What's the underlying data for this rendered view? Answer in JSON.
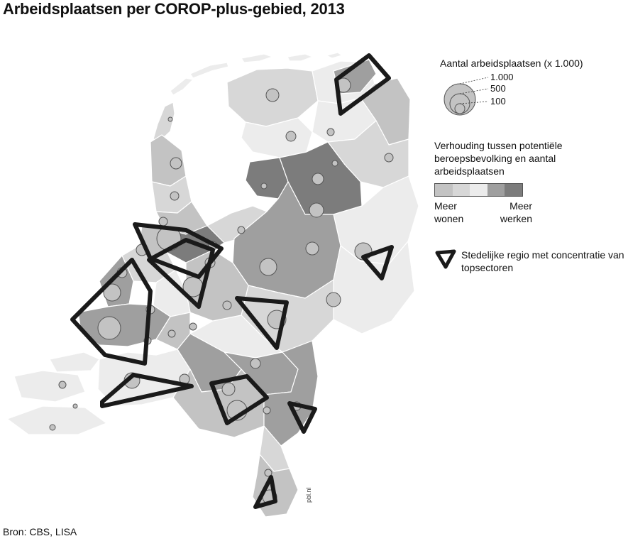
{
  "title": "Arbeidsplaatsen per COROP-plus-gebied, 2013",
  "source": "Bron: CBS, LISA",
  "credit": "pbl.nl",
  "legend_size": {
    "title": "Aantal arbeidsplaatsen (x 1.000)",
    "values": [
      "1.000",
      "500",
      "100"
    ]
  },
  "legend_ratio": {
    "title": "Verhouding tussen potentiële beroepsbevolking en aantal arbeidsplaatsen",
    "left_label": "Meer wonen",
    "right_label": "Meer werken",
    "colors": [
      "#c3c3c3",
      "#d7d7d7",
      "#ececec",
      "#9f9f9f",
      "#7c7c7c"
    ]
  },
  "legend_region": {
    "label": "Stedelijke regio met concentratie van topsectoren"
  }
}
